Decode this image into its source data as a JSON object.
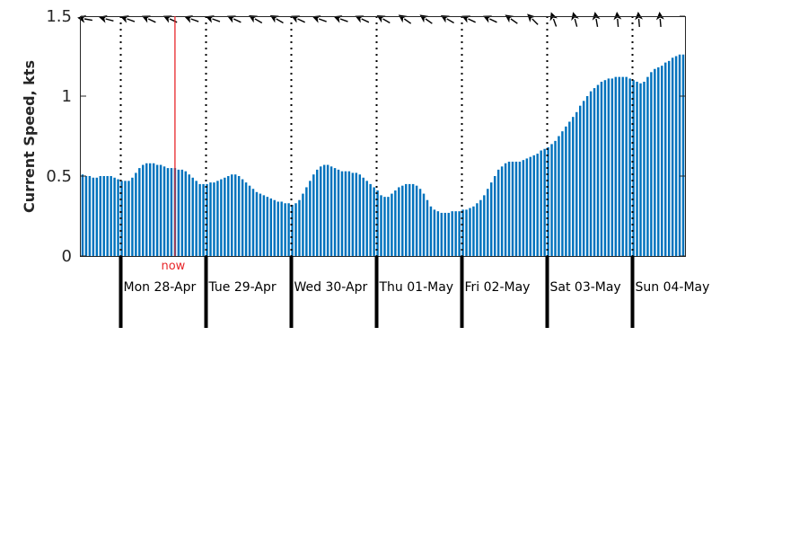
{
  "chart_data": {
    "type": "bar",
    "ylabel": "Current Speed, kts",
    "ylim": [
      0,
      1.5
    ],
    "yticks": [
      "0",
      "0.5",
      "1",
      "1.5"
    ],
    "ytick_values": [
      0,
      0.5,
      1,
      1.5
    ],
    "hours_per_bar": 1,
    "start_hour": 0,
    "day_labels": [
      "Mon 28-Apr",
      "Tue 29-Apr",
      "Wed 30-Apr",
      "Thu 01-May",
      "Fri 02-May",
      "Sat 03-May",
      "Sun 04-May"
    ],
    "day_start_hours": [
      11,
      35,
      59,
      83,
      107,
      131,
      155
    ],
    "now_label": "now",
    "now_hour": 26.5,
    "bar_color": "#0072bd",
    "now_color": "#e8262a",
    "values": [
      0.51,
      0.5,
      0.5,
      0.49,
      0.49,
      0.5,
      0.5,
      0.5,
      0.5,
      0.49,
      0.48,
      0.47,
      0.47,
      0.47,
      0.49,
      0.52,
      0.55,
      0.57,
      0.58,
      0.58,
      0.58,
      0.57,
      0.57,
      0.56,
      0.55,
      0.55,
      0.55,
      0.54,
      0.54,
      0.53,
      0.51,
      0.49,
      0.47,
      0.45,
      0.45,
      0.45,
      0.46,
      0.46,
      0.47,
      0.48,
      0.49,
      0.5,
      0.51,
      0.51,
      0.5,
      0.48,
      0.46,
      0.44,
      0.42,
      0.4,
      0.39,
      0.38,
      0.37,
      0.36,
      0.35,
      0.34,
      0.34,
      0.33,
      0.33,
      0.32,
      0.33,
      0.35,
      0.39,
      0.43,
      0.47,
      0.51,
      0.54,
      0.56,
      0.57,
      0.57,
      0.56,
      0.55,
      0.54,
      0.53,
      0.53,
      0.53,
      0.52,
      0.52,
      0.51,
      0.49,
      0.47,
      0.45,
      0.43,
      0.41,
      0.38,
      0.37,
      0.37,
      0.39,
      0.41,
      0.43,
      0.44,
      0.45,
      0.45,
      0.45,
      0.44,
      0.42,
      0.39,
      0.35,
      0.31,
      0.29,
      0.28,
      0.27,
      0.27,
      0.27,
      0.28,
      0.28,
      0.28,
      0.29,
      0.29,
      0.3,
      0.31,
      0.33,
      0.35,
      0.38,
      0.42,
      0.46,
      0.5,
      0.54,
      0.56,
      0.58,
      0.59,
      0.59,
      0.59,
      0.59,
      0.6,
      0.61,
      0.62,
      0.63,
      0.64,
      0.66,
      0.67,
      0.68,
      0.7,
      0.72,
      0.75,
      0.78,
      0.81,
      0.84,
      0.87,
      0.9,
      0.94,
      0.97,
      1.0,
      1.03,
      1.05,
      1.07,
      1.09,
      1.1,
      1.11,
      1.11,
      1.12,
      1.12,
      1.12,
      1.12,
      1.11,
      1.1,
      1.09,
      1.08,
      1.09,
      1.12,
      1.15,
      1.17,
      1.18,
      1.19,
      1.21,
      1.22,
      1.24,
      1.25,
      1.26,
      1.26
    ],
    "direction_arrows": [
      {
        "hour": 1,
        "angle": 190
      },
      {
        "hour": 7,
        "angle": 195
      },
      {
        "hour": 13,
        "angle": 200
      },
      {
        "hour": 19,
        "angle": 205
      },
      {
        "hour": 25,
        "angle": 205
      },
      {
        "hour": 31,
        "angle": 200
      },
      {
        "hour": 37,
        "angle": 200
      },
      {
        "hour": 43,
        "angle": 205
      },
      {
        "hour": 49,
        "angle": 210
      },
      {
        "hour": 55,
        "angle": 210
      },
      {
        "hour": 61,
        "angle": 205
      },
      {
        "hour": 67,
        "angle": 200
      },
      {
        "hour": 73,
        "angle": 200
      },
      {
        "hour": 79,
        "angle": 205
      },
      {
        "hour": 85,
        "angle": 210
      },
      {
        "hour": 91,
        "angle": 215
      },
      {
        "hour": 97,
        "angle": 215
      },
      {
        "hour": 103,
        "angle": 210
      },
      {
        "hour": 109,
        "angle": 205
      },
      {
        "hour": 115,
        "angle": 205
      },
      {
        "hour": 121,
        "angle": 215
      },
      {
        "hour": 127,
        "angle": 225
      },
      {
        "hour": 133,
        "angle": 250
      },
      {
        "hour": 139,
        "angle": 255
      },
      {
        "hour": 145,
        "angle": 260
      },
      {
        "hour": 151,
        "angle": 265
      },
      {
        "hour": 157,
        "angle": 265
      },
      {
        "hour": 163,
        "angle": 265
      }
    ]
  }
}
